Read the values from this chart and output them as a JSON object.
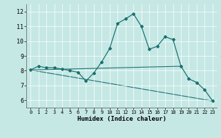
{
  "xlabel": "Humidex (Indice chaleur)",
  "xlim": [
    -0.5,
    23.5
  ],
  "ylim": [
    5.5,
    12.5
  ],
  "yticks": [
    6,
    7,
    8,
    9,
    10,
    11,
    12
  ],
  "xticks": [
    0,
    1,
    2,
    3,
    4,
    5,
    6,
    7,
    8,
    9,
    10,
    11,
    12,
    13,
    14,
    15,
    16,
    17,
    18,
    19,
    20,
    21,
    22,
    23
  ],
  "bg_color": "#c5e8e5",
  "line_color": "#1a7070",
  "line1_x": [
    0,
    1,
    2,
    3,
    4,
    5,
    6,
    7,
    8,
    9,
    10,
    11,
    12,
    13,
    14,
    15,
    16,
    17,
    18,
    19,
    20,
    21,
    22,
    23
  ],
  "line1_y": [
    8.05,
    8.3,
    8.2,
    8.2,
    8.1,
    8.0,
    7.9,
    7.3,
    7.85,
    8.6,
    9.5,
    11.2,
    11.5,
    11.85,
    11.0,
    9.45,
    9.65,
    10.3,
    10.1,
    8.3,
    7.45,
    7.2,
    6.7,
    5.95
  ],
  "line2_x": [
    0,
    19
  ],
  "line2_y": [
    8.05,
    8.3
  ],
  "line3_x": [
    0,
    23
  ],
  "line3_y": [
    8.05,
    5.95
  ]
}
